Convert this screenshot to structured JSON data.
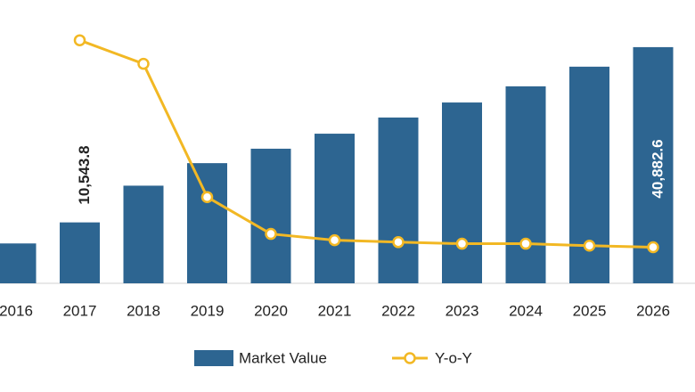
{
  "chart_data": {
    "type": "bar",
    "categories": [
      "2016",
      "2017",
      "2018",
      "2019",
      "2020",
      "2021",
      "2022",
      "2023",
      "2024",
      "2025",
      "2026"
    ],
    "series": [
      {
        "name": "Market Value",
        "type": "bar",
        "color": "#2d6591",
        "values": [
          6900,
          10543.8,
          16900,
          20800,
          23300,
          25900,
          28700,
          31300,
          34100,
          37500,
          40882.6
        ],
        "value_labels": [
          null,
          "10,543.8",
          null,
          null,
          null,
          null,
          null,
          null,
          null,
          null,
          "40,882.6"
        ]
      },
      {
        "name": "Y-o-Y",
        "type": "line",
        "color": "#f2b824",
        "axis": "y2",
        "values": [
          null,
          62,
          56,
          22,
          12.6,
          11,
          10.5,
          10.1,
          10.1,
          9.6,
          9.2
        ]
      }
    ],
    "ylim": [
      0,
      47500
    ],
    "y2lim": [
      0,
      70
    ]
  }
}
